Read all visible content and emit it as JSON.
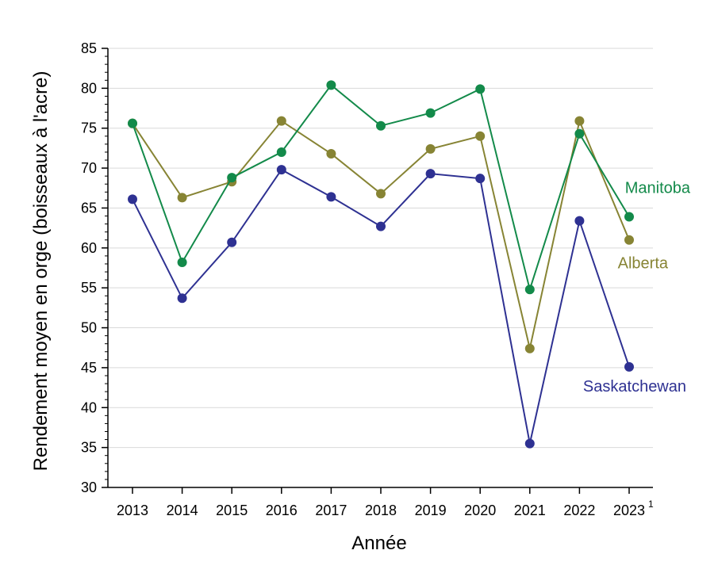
{
  "chart_data": {
    "type": "line",
    "title": "",
    "xlabel": "Année",
    "ylabel": "Rendement moyen en orge (boisseaux à l'acre)",
    "categories": [
      "2013",
      "2014",
      "2015",
      "2016",
      "2017",
      "2018",
      "2019",
      "2020",
      "2021",
      "2022",
      "2023"
    ],
    "last_category_footnote": "1",
    "ylim": [
      30,
      85
    ],
    "yticks": [
      30,
      35,
      40,
      45,
      50,
      55,
      60,
      65,
      70,
      75,
      80,
      85
    ],
    "grid": true,
    "legend": "direct labels at line ends (right)",
    "series": [
      {
        "name": "Manitoba",
        "color": "#138a4a",
        "values": [
          75.6,
          58.2,
          68.8,
          72.0,
          80.4,
          75.3,
          76.9,
          79.9,
          54.8,
          74.3,
          63.9
        ]
      },
      {
        "name": "Alberta",
        "color": "#878434",
        "values": [
          75.6,
          66.3,
          68.3,
          75.9,
          71.8,
          66.8,
          72.4,
          74.0,
          47.4,
          75.9,
          61.0
        ]
      },
      {
        "name": "Saskatchewan",
        "color": "#2e3192",
        "values": [
          66.1,
          53.7,
          60.7,
          69.8,
          66.4,
          62.7,
          69.3,
          68.7,
          35.5,
          63.4,
          45.1
        ]
      }
    ]
  }
}
